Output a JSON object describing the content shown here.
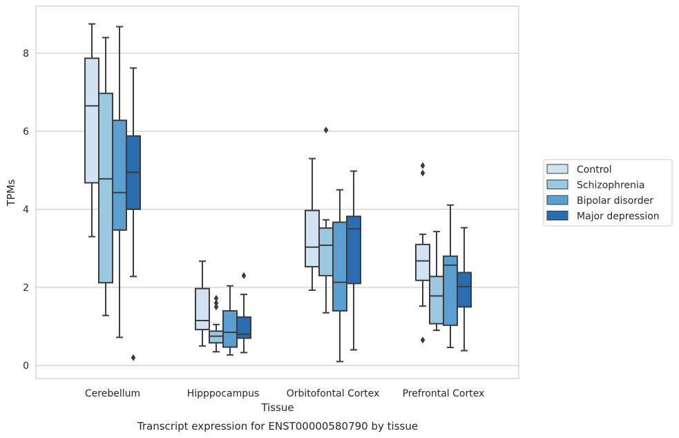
{
  "chart_data": {
    "type": "box",
    "title": "",
    "caption": "Transcript expression for ENST00000580790 by tissue",
    "xlabel": "Tissue",
    "ylabel": "TPMs",
    "ylim": [
      -0.3,
      9.3
    ],
    "yticks": [
      0,
      2,
      4,
      6,
      8
    ],
    "grid": "horizontal",
    "legend_position": "right",
    "categories": [
      "Cerebellum",
      "Hipppocampus",
      "Orbitofontal Cortex",
      "Prefrontal Cortex"
    ],
    "series": [
      {
        "name": "Control",
        "color": "#d1e2f2",
        "boxes": [
          {
            "whisker_low": 3.3,
            "q1": 4.68,
            "median": 6.65,
            "q3": 7.87,
            "whisker_high": 8.75,
            "outliers": []
          },
          {
            "whisker_low": 0.5,
            "q1": 0.92,
            "median": 1.15,
            "q3": 1.97,
            "whisker_high": 2.67,
            "outliers": []
          },
          {
            "whisker_low": 1.93,
            "q1": 2.53,
            "median": 3.03,
            "q3": 3.97,
            "whisker_high": 5.3,
            "outliers": []
          },
          {
            "whisker_low": 1.52,
            "q1": 2.18,
            "median": 2.68,
            "q3": 3.1,
            "whisker_high": 3.36,
            "outliers": [
              4.93,
              5.12,
              0.65
            ]
          }
        ]
      },
      {
        "name": "Schizophrenia",
        "color": "#9ac8e0",
        "boxes": [
          {
            "whisker_low": 1.28,
            "q1": 2.12,
            "median": 4.78,
            "q3": 6.97,
            "whisker_high": 8.4,
            "outliers": []
          },
          {
            "whisker_low": 0.35,
            "q1": 0.58,
            "median": 0.75,
            "q3": 0.88,
            "whisker_high": 1.05,
            "outliers": [
              1.5,
              1.6,
              1.72
            ]
          },
          {
            "whisker_low": 1.35,
            "q1": 2.3,
            "median": 3.08,
            "q3": 3.52,
            "whisker_high": 3.73,
            "outliers": [
              6.03
            ]
          },
          {
            "whisker_low": 0.9,
            "q1": 1.07,
            "median": 1.78,
            "q3": 2.28,
            "whisker_high": 3.43,
            "outliers": []
          }
        ]
      },
      {
        "name": "Bipolar disorder",
        "color": "#5a9fd0",
        "boxes": [
          {
            "whisker_low": 0.72,
            "q1": 3.47,
            "median": 4.43,
            "q3": 6.28,
            "whisker_high": 8.68,
            "outliers": []
          },
          {
            "whisker_low": 0.27,
            "q1": 0.47,
            "median": 0.85,
            "q3": 1.4,
            "whisker_high": 2.04,
            "outliers": []
          },
          {
            "whisker_low": 0.1,
            "q1": 1.4,
            "median": 2.13,
            "q3": 3.67,
            "whisker_high": 4.5,
            "outliers": []
          },
          {
            "whisker_low": 0.46,
            "q1": 1.03,
            "median": 2.57,
            "q3": 2.8,
            "whisker_high": 4.11,
            "outliers": []
          }
        ]
      },
      {
        "name": "Major depression",
        "color": "#2a6cb0",
        "boxes": [
          {
            "whisker_low": 2.28,
            "q1": 4.0,
            "median": 4.95,
            "q3": 5.88,
            "whisker_high": 7.62,
            "outliers": [
              0.2
            ]
          },
          {
            "whisker_low": 0.33,
            "q1": 0.7,
            "median": 0.8,
            "q3": 1.24,
            "whisker_high": 1.82,
            "outliers": [
              2.3
            ]
          },
          {
            "whisker_low": 0.4,
            "q1": 2.1,
            "median": 3.5,
            "q3": 3.82,
            "whisker_high": 4.98,
            "outliers": []
          },
          {
            "whisker_low": 0.38,
            "q1": 1.5,
            "median": 2.02,
            "q3": 2.38,
            "whisker_high": 3.53,
            "outliers": []
          }
        ]
      }
    ]
  }
}
